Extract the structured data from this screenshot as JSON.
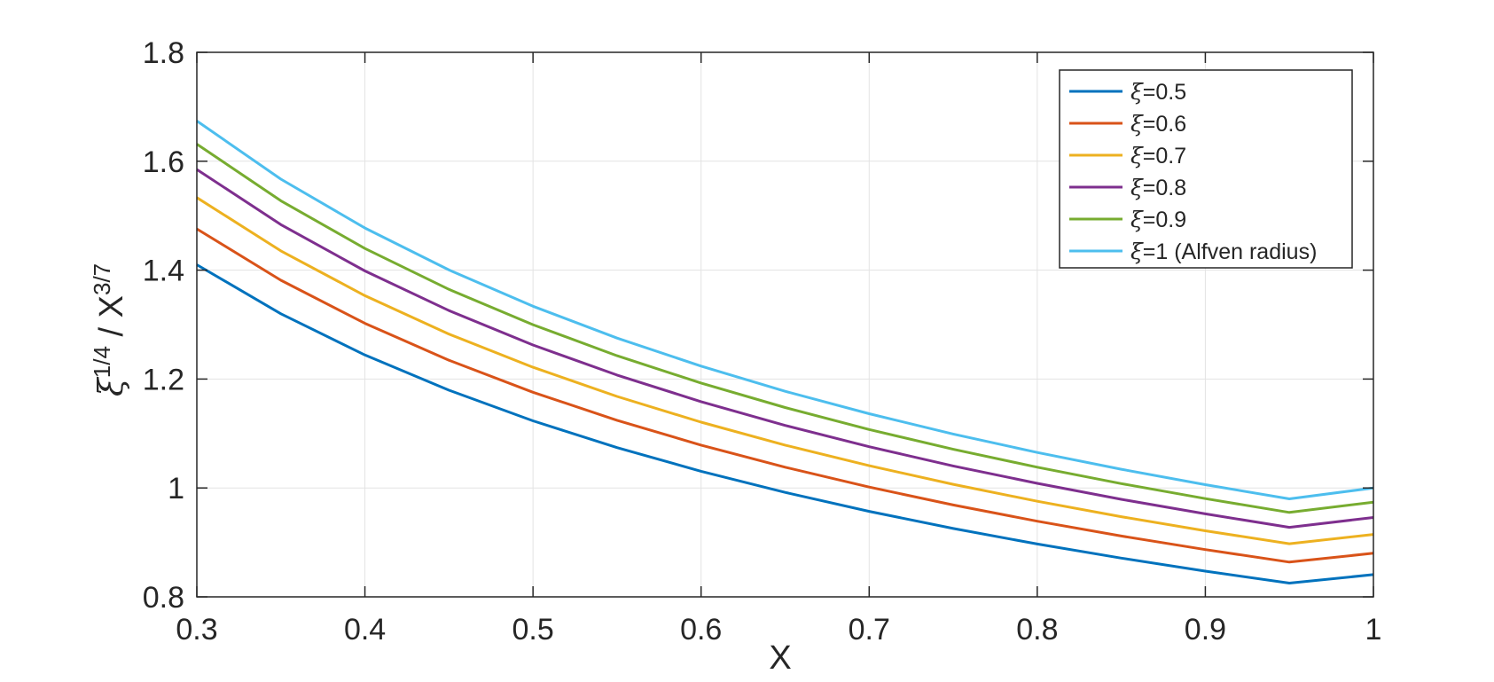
{
  "chart_data": {
    "type": "line",
    "title": "",
    "xlabel": "X",
    "ylabel": {
      "symbol": "ξ",
      "sup1": "1/4",
      "divider": " / X",
      "sup2": "3/7"
    },
    "xlim": [
      0.3,
      1
    ],
    "ylim": [
      0.8,
      1.8
    ],
    "xticks": [
      0.3,
      0.4,
      0.5,
      0.6,
      0.7,
      0.8,
      0.9,
      1
    ],
    "xtick_labels": [
      "0.3",
      "0.4",
      "0.5",
      "0.6",
      "0.7",
      "0.8",
      "0.9",
      "1"
    ],
    "yticks": [
      0.8,
      1,
      1.2,
      1.4,
      1.6,
      1.8
    ],
    "ytick_labels": [
      "0.8",
      "1",
      "1.2",
      "1.4",
      "1.6",
      "1.8"
    ],
    "grid": true,
    "legend_position": "top-right",
    "x": [
      0.3,
      0.35,
      0.4,
      0.45,
      0.5,
      0.55,
      0.6,
      0.65,
      0.7,
      0.75,
      0.8,
      0.85,
      0.9,
      0.95,
      1.0
    ],
    "series": [
      {
        "name": "=0.5",
        "symbol": "ξ",
        "color": "#0072BD",
        "values": [
          1.4099,
          1.3199,
          1.2442,
          1.1794,
          1.1233,
          1.0741,
          1.0306,
          0.9918,
          0.957,
          0.9256,
          0.8971,
          0.8711,
          0.8472,
          0.8253,
          0.8409
        ]
      },
      {
        "name": "=0.6",
        "symbol": "ξ",
        "color": "#D95319",
        "values": [
          1.4757,
          1.3815,
          1.3023,
          1.2345,
          1.1757,
          1.1242,
          1.0787,
          1.0381,
          1.0017,
          0.9688,
          0.939,
          0.9117,
          0.8868,
          0.8638,
          0.8801
        ]
      },
      {
        "name": "=0.7",
        "symbol": "ξ",
        "color": "#EDB120",
        "values": [
          1.5333,
          1.4354,
          1.3531,
          1.2826,
          1.2216,
          1.1681,
          1.1208,
          1.0786,
          1.0408,
          1.0066,
          0.9756,
          0.9473,
          0.9214,
          0.8975,
          0.9147
        ]
      },
      {
        "name": "=0.8",
        "symbol": "ξ",
        "color": "#7E2F8E",
        "values": [
          1.5848,
          1.4836,
          1.3986,
          1.3257,
          1.2626,
          1.2073,
          1.1585,
          1.1148,
          1.0757,
          1.0404,
          1.0084,
          0.9791,
          0.9524,
          0.9277,
          0.9457
        ]
      },
      {
        "name": "=0.9",
        "symbol": "ξ",
        "color": "#77AC30",
        "values": [
          1.6314,
          1.5273,
          1.4397,
          1.3647,
          1.2998,
          1.2429,
          1.1926,
          1.1477,
          1.1074,
          1.071,
          1.0381,
          1.008,
          0.9804,
          0.955,
          0.974
        ]
      },
      {
        "name": "=1 (Alfven radius)",
        "symbol": "ξ",
        "color": "#4DBEEE",
        "values": [
          1.674,
          1.5671,
          1.4773,
          1.4003,
          1.3337,
          1.2753,
          1.2237,
          1.1776,
          1.1363,
          1.099,
          1.0651,
          1.0343,
          1.006,
          0.9799,
          1.0
        ]
      }
    ]
  }
}
